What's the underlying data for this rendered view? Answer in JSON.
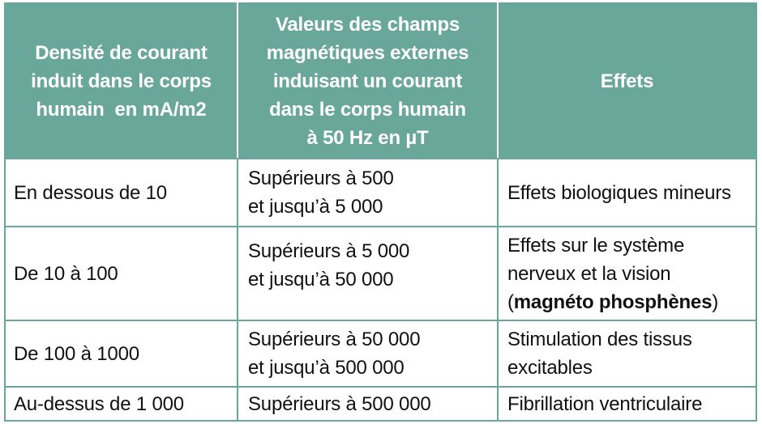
{
  "table": {
    "headers": [
      [
        "Densité de courant",
        "induit dans le corps",
        "humain  en mA/m2"
      ],
      [
        "Valeurs des champs",
        "magnétiques externes",
        "induisant un courant",
        "dans le corps humain",
        "à 50 Hz en µT"
      ],
      [
        "Effets"
      ]
    ],
    "rows": [
      {
        "density": [
          "En dessous de 10"
        ],
        "field": [
          "Supérieurs à 500",
          "et jusqu’à 5 000"
        ],
        "effect": [
          "Effets biologiques mineurs"
        ]
      },
      {
        "density": [
          "De 10 à 100"
        ],
        "field": [
          "Supérieurs à 5 000",
          "et jusqu’à 50 000"
        ],
        "effect": [
          "Effets sur le système",
          "nerveux et la vision"
        ],
        "effect_paren_open": "(",
        "effect_bold": "magnéto phosphènes",
        "effect_paren_close": ")"
      },
      {
        "density": [
          "De 100 à 1000"
        ],
        "field": [
          "Supérieurs à 50 000",
          "et jusqu’à 500 000"
        ],
        "effect": [
          "Stimulation des tissus",
          "excitables"
        ]
      },
      {
        "density": [
          "Au-dessus de 1 000"
        ],
        "field": [
          "Supérieurs à 500 000"
        ],
        "effect": [
          "Fibrillation ventriculaire"
        ]
      }
    ]
  },
  "colors": {
    "header_background": "#6aa79b",
    "header_text": "#ffffff",
    "border": "#6aa79b",
    "body_text": "#111111"
  }
}
